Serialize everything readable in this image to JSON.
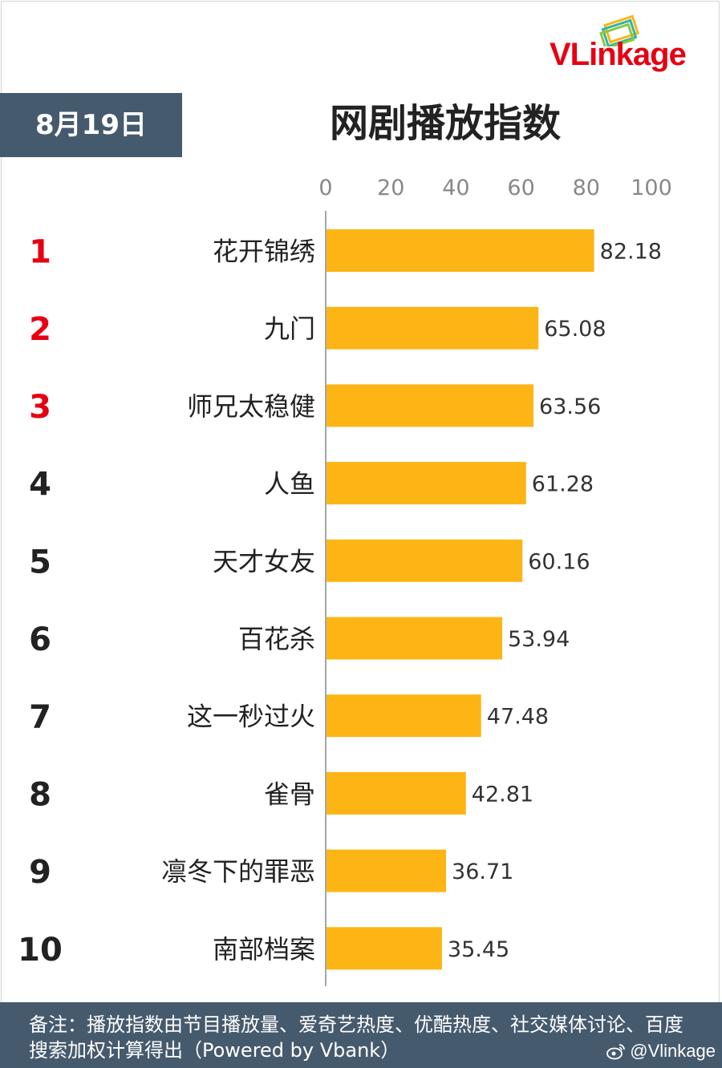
{
  "brand": {
    "logo_part1": "VLin",
    "logo_part2": "kage"
  },
  "date_label": "8月19日",
  "chart_data": {
    "type": "bar",
    "orientation": "horizontal",
    "title": "网剧播放指数",
    "xlim": [
      0,
      100
    ],
    "xticks": [
      "0",
      "20",
      "40",
      "60",
      "80",
      "100"
    ],
    "ranks": [
      "1",
      "2",
      "3",
      "4",
      "5",
      "6",
      "7",
      "8",
      "9",
      "10"
    ],
    "categories": [
      "花开锦绣",
      "九门",
      "师兄太稳健",
      "人鱼",
      "天才女友",
      "百花杀",
      "这一秒过火",
      "雀骨",
      "凛冬下的罪恶",
      "南部档案"
    ],
    "values": [
      82.18,
      65.08,
      63.56,
      61.28,
      60.16,
      53.94,
      47.48,
      42.81,
      36.71,
      35.45
    ],
    "value_labels": [
      "82.18",
      "65.08",
      "63.56",
      "61.28",
      "60.16",
      "53.94",
      "47.48",
      "42.81",
      "36.71",
      "35.45"
    ],
    "bar_color": "#fdb515",
    "top_rank_color": "#e60012",
    "rank_color": "#222222",
    "grid": false,
    "legend": "none"
  },
  "footer": {
    "note": "备注：播放指数由节目播放量、爱奇艺热度、优酷热度、社交媒体讨论、百度搜索加权计算得出（Powered by Vbank）",
    "watermark": "@Vlinkage",
    "watermark_icon": "weibo-icon"
  }
}
